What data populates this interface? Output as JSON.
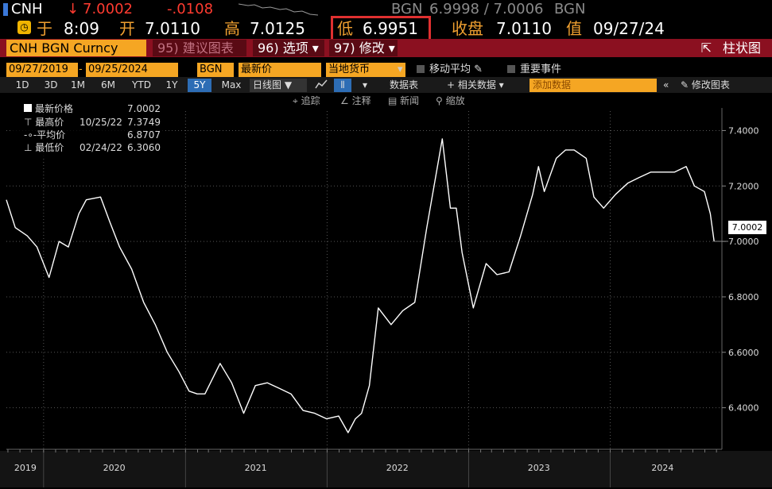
{
  "ticker": {
    "symbol": "CNH",
    "arrow": "↓",
    "last": "7.0002",
    "change": "-.0108",
    "source1": "BGN",
    "bid_ask": "6.9998 / 7.0006",
    "source2": "BGN"
  },
  "quote": {
    "at_label": "于",
    "time": "8:09",
    "open_label": "开",
    "open": "7.0110",
    "high_label": "高",
    "high": "7.0125",
    "low_label": "低",
    "low": "6.9951",
    "close_label": "收盘",
    "close": "7.0110",
    "value_label": "值",
    "date": "09/27/24"
  },
  "band": {
    "security": "CNH BGN Curncy",
    "suggest_label": "95) 建议图表",
    "options_label": "96) 选项 ▾",
    "modify_label": "97) 修改 ▾",
    "bar_chart_label": "柱状图"
  },
  "settings": {
    "start_date": "09/27/2019",
    "end_date": "09/25/2024",
    "source": "BGN",
    "field": "最新价",
    "currency": "当地货币",
    "moving_avg": "移动平均",
    "key_events": "重要事件"
  },
  "periods": [
    "1D",
    "3D",
    "1M",
    "6M",
    "YTD",
    "1Y",
    "5Y",
    "Max"
  ],
  "selected_period": "5Y",
  "toolbar": {
    "frequency": "日线图 ▼",
    "data_table": "数据表",
    "related_data": "+ 相关数据 ▾",
    "add_data_placeholder": "添加数据",
    "edit_chart": "修改图表"
  },
  "tools": {
    "track": "追踪",
    "annotate": "注释",
    "news": "新闻",
    "zoom": "缩放"
  },
  "legend": {
    "last_label": "最新价格",
    "last_value": "7.0002",
    "high_label": "最高价",
    "high_date": "10/25/22",
    "high_value": "7.3749",
    "avg_label": "平均价",
    "avg_value": "6.8707",
    "low_label": "最低价",
    "low_date": "02/24/22",
    "low_value": "6.3060"
  },
  "colors": {
    "accent_orange": "#f5a623",
    "band_red": "#8b1020",
    "alert_red": "#ff3b30",
    "highlight_box": "#e03030",
    "selected_blue": "#2d6db5",
    "line": "#ffffff"
  },
  "chart_data": {
    "type": "line",
    "title": "",
    "xlabel": "",
    "ylabel": "",
    "ylim": [
      6.25,
      7.47
    ],
    "yticks": [
      6.4,
      6.6,
      6.8,
      7.0,
      7.2,
      7.4
    ],
    "ytick_labels": [
      "6.4000",
      "6.6000",
      "6.8000",
      "7.0000",
      "7.2000",
      "7.4000"
    ],
    "xlim": [
      "2019-09-27",
      "2024-10-15"
    ],
    "x_axis_labels": [
      {
        "label": "2019",
        "date": "2019-11-15"
      },
      {
        "label": "2020",
        "date": "2020-07-01"
      },
      {
        "label": "2021",
        "date": "2021-07-01"
      },
      {
        "label": "2022",
        "date": "2022-07-01"
      },
      {
        "label": "2023",
        "date": "2023-07-01"
      },
      {
        "label": "2024",
        "date": "2024-05-15"
      }
    ],
    "year_dividers": [
      "2020-01-01",
      "2021-01-01",
      "2022-01-01",
      "2023-01-01",
      "2024-01-01"
    ],
    "current_value_label": "7.0002",
    "grid": true,
    "series": [
      {
        "name": "CNH BGN Curncy",
        "x": [
          "2019-09-27",
          "2019-10-20",
          "2019-11-20",
          "2019-12-15",
          "2020-01-15",
          "2020-02-10",
          "2020-03-05",
          "2020-04-01",
          "2020-04-20",
          "2020-05-27",
          "2020-06-20",
          "2020-07-15",
          "2020-08-15",
          "2020-09-15",
          "2020-10-15",
          "2020-11-15",
          "2020-12-15",
          "2021-01-10",
          "2021-01-31",
          "2021-02-20",
          "2021-03-31",
          "2021-04-30",
          "2021-05-31",
          "2021-06-30",
          "2021-07-31",
          "2021-08-31",
          "2021-09-30",
          "2021-10-31",
          "2021-11-30",
          "2021-12-31",
          "2022-01-31",
          "2022-02-24",
          "2022-03-15",
          "2022-03-31",
          "2022-04-20",
          "2022-05-13",
          "2022-06-15",
          "2022-07-15",
          "2022-08-15",
          "2022-09-15",
          "2022-10-25",
          "2022-11-15",
          "2022-11-30",
          "2022-12-15",
          "2023-01-13",
          "2023-02-15",
          "2023-03-15",
          "2023-04-15",
          "2023-05-15",
          "2023-06-15",
          "2023-06-30",
          "2023-07-15",
          "2023-08-15",
          "2023-09-08",
          "2023-09-30",
          "2023-10-31",
          "2023-11-20",
          "2023-12-15",
          "2024-01-15",
          "2024-02-15",
          "2024-03-15",
          "2024-04-15",
          "2024-05-15",
          "2024-06-15",
          "2024-07-15",
          "2024-08-05",
          "2024-08-31",
          "2024-09-15",
          "2024-09-25"
        ],
        "y": [
          7.15,
          7.05,
          7.02,
          6.98,
          6.87,
          7.0,
          6.98,
          7.1,
          7.15,
          7.16,
          7.07,
          6.98,
          6.9,
          6.78,
          6.7,
          6.6,
          6.53,
          6.46,
          6.45,
          6.45,
          6.56,
          6.49,
          6.38,
          6.48,
          6.49,
          6.47,
          6.45,
          6.39,
          6.38,
          6.36,
          6.37,
          6.31,
          6.36,
          6.38,
          6.48,
          6.76,
          6.7,
          6.75,
          6.78,
          7.05,
          7.37,
          7.12,
          7.12,
          6.96,
          6.76,
          6.92,
          6.88,
          6.89,
          7.02,
          7.17,
          7.27,
          7.18,
          7.3,
          7.33,
          7.33,
          7.3,
          7.16,
          7.12,
          7.17,
          7.21,
          7.23,
          7.25,
          7.25,
          7.25,
          7.27,
          7.2,
          7.18,
          7.1,
          7.0
        ]
      }
    ]
  }
}
